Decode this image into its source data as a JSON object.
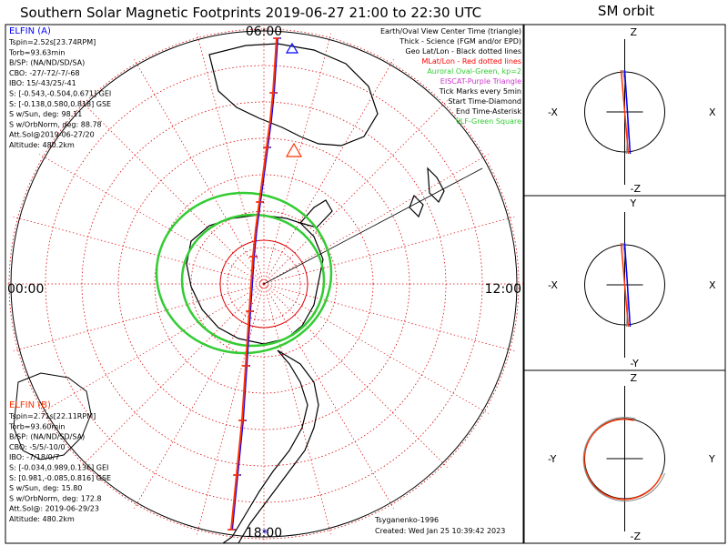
{
  "title": "Southern Solar Magnetic Footprints 2019-06-27 21:00 to 22:30 UTC",
  "orbit_title": "SM orbit",
  "polar": {
    "local_time_labels": {
      "top": "06:00",
      "left": "00:00",
      "right": "12:00",
      "bottom": "18:00"
    },
    "legend": [
      {
        "text": "Earth/Oval View Center Time (triangle)",
        "color": "#000000"
      },
      {
        "text": "Thick - Science (FGM and/or EPD)",
        "color": "#000000"
      },
      {
        "text": "Geo Lat/Lon - Black dotted lines",
        "color": "#000000"
      },
      {
        "text": "MLat/Lon - Red dotted lines",
        "color": "#ff0000"
      },
      {
        "text": "Auroral Oval-Green, kp=2",
        "color": "#33cc33"
      },
      {
        "text": "EISCAT-Purple Triangle",
        "color": "#cc33cc"
      },
      {
        "text": "Tick Marks every 5min",
        "color": "#000000"
      },
      {
        "text": "Start Time-Diamond",
        "color": "#000000"
      },
      {
        "text": "End Time-Asterisk",
        "color": "#000000"
      },
      {
        "text": "VLF-Green Square",
        "color": "#33cc33"
      }
    ],
    "elfin_a": {
      "name": "ELFIN (A)",
      "color": "#0000ff",
      "lines": [
        "Tspin=2.52s[23.74RPM]",
        "Torb=93.63min",
        "B/SP: (NA/ND/SD/SA)",
        "CBO: -27/-72/-7/-68",
        "IBO: 15/-43/25/-41",
        "S: [-0.543,-0.504,0.671] GEI",
        "S: [-0.138,0.580,0.818] GSE",
        "S w/Sun, deg: 98.11",
        "S w/OrbNorm, deg: 88.78",
        "Att.Sol@2019-06-27/20",
        "Altitude: 480.2km"
      ]
    },
    "elfin_b": {
      "name": "ELFIN (B)",
      "color": "#ff3300",
      "lines": [
        "Tspin=2.71s[22.11RPM]",
        "Torb=93.60min",
        "B/SP: (NA/ND/SD/SA)",
        "CBO: -5/5/-10/0",
        "IBO: -7/18/0/7",
        "S: [-0.034,0.989,0.136] GEI",
        "S: [0.981,-0.085,0.816] GSE",
        "S w/Sun, deg: 15.80",
        "S w/OrbNorm, deg: 172.8",
        "Att.Sol@: 2019-06-29/23",
        "Altitude: 480.2km"
      ]
    },
    "model": "Tsyganenko-1996",
    "created": "Created: Wed Jan 25 10:39:42 2023"
  },
  "orbit_panels": [
    {
      "top": "Z",
      "bottom": "-Z",
      "left": "-X",
      "right": "X"
    },
    {
      "top": "Y",
      "bottom": "-Y",
      "left": "-X",
      "right": "X"
    },
    {
      "top": "Z",
      "bottom": "-Z",
      "left": "-Y",
      "right": "Y"
    }
  ],
  "chart_data": [
    {
      "type": "scatter",
      "title": "Southern Solar Magnetic Footprints 2019-06-27 21:00 to 22:30 UTC",
      "projection": "polar, southern hemisphere, local time on azimuth",
      "radial_rings_deg_from_pole": [
        10,
        20,
        30,
        40,
        50,
        60,
        70
      ],
      "auroral_oval_kp": 2,
      "series": [
        {
          "name": "ELFIN (A)",
          "color": "#0000ff",
          "points": [
            [
              1.5,
              9.0
            ],
            [
              1.3,
              8.0
            ],
            [
              1.1,
              7.0
            ],
            [
              0.8,
              6.0
            ],
            [
              0.4,
              5.0
            ],
            [
              0.0,
              4.0
            ],
            [
              -0.4,
              3.0
            ],
            [
              -0.8,
              2.0
            ],
            [
              -1.1,
              1.0
            ],
            [
              -1.3,
              0.0
            ],
            [
              -1.5,
              -1.0
            ],
            [
              -1.7,
              -2.0
            ],
            [
              -1.9,
              -3.0
            ],
            [
              -2.1,
              -4.0
            ],
            [
              -2.3,
              -5.0
            ],
            [
              -2.6,
              -6.0
            ],
            [
              -2.9,
              -7.0
            ],
            [
              -3.2,
              -8.0
            ],
            [
              -3.5,
              -9.0
            ]
          ]
        },
        {
          "name": "ELFIN (B)",
          "color": "#ff3300",
          "points": [
            [
              1.4,
              9.0
            ],
            [
              1.2,
              8.0
            ],
            [
              1.0,
              7.0
            ],
            [
              0.7,
              6.0
            ],
            [
              0.3,
              5.0
            ],
            [
              -0.1,
              4.0
            ],
            [
              -0.5,
              3.0
            ],
            [
              -0.9,
              2.0
            ],
            [
              -1.2,
              1.0
            ],
            [
              -1.4,
              0.0
            ],
            [
              -1.6,
              -1.0
            ],
            [
              -1.8,
              -2.0
            ],
            [
              -2.0,
              -3.0
            ],
            [
              -2.2,
              -4.0
            ],
            [
              -2.4,
              -5.0
            ],
            [
              -2.7,
              -6.0
            ],
            [
              -3.0,
              -7.0
            ],
            [
              -3.3,
              -8.0
            ],
            [
              -3.6,
              -9.0
            ]
          ]
        }
      ]
    }
  ]
}
